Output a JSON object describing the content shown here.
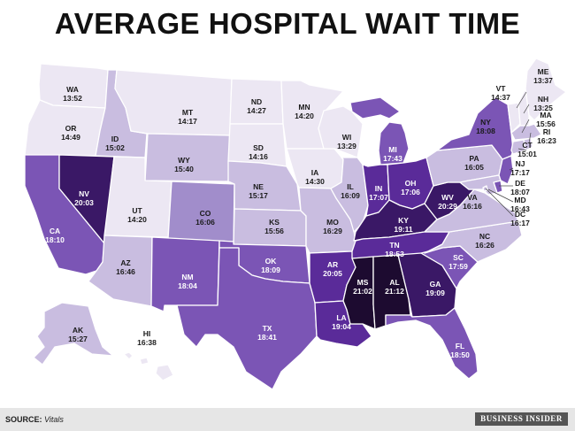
{
  "title": "AVERAGE HOSPITAL WAIT TIME",
  "source_label": "SOURCE:",
  "source_value": "Vitals",
  "brand": "BUSINESS INSIDER",
  "colors": {
    "c1": "#ece7f3",
    "c2": "#c9bde0",
    "c3": "#a18dcb",
    "c4": "#7b55b5",
    "c5": "#5a2b99",
    "c6": "#3a1866",
    "c7": "#1d0b30",
    "border": "#ffffff"
  },
  "states": {
    "WA": {
      "abbr": "WA",
      "time": "13:52"
    },
    "OR": {
      "abbr": "OR",
      "time": "14:49"
    },
    "CA": {
      "abbr": "CA",
      "time": "18:10"
    },
    "NV": {
      "abbr": "NV",
      "time": "20:03"
    },
    "ID": {
      "abbr": "ID",
      "time": "15:02"
    },
    "MT": {
      "abbr": "MT",
      "time": "14:17"
    },
    "WY": {
      "abbr": "WY",
      "time": "15:40"
    },
    "UT": {
      "abbr": "UT",
      "time": "14:20"
    },
    "AZ": {
      "abbr": "AZ",
      "time": "16:46"
    },
    "CO": {
      "abbr": "CO",
      "time": "16:06"
    },
    "NM": {
      "abbr": "NM",
      "time": "18:04"
    },
    "ND": {
      "abbr": "ND",
      "time": "14:27"
    },
    "SD": {
      "abbr": "SD",
      "time": "14:16"
    },
    "NE": {
      "abbr": "NE",
      "time": "15:17"
    },
    "KS": {
      "abbr": "KS",
      "time": "15:56"
    },
    "OK": {
      "abbr": "OK",
      "time": "18:09"
    },
    "TX": {
      "abbr": "TX",
      "time": "18:41"
    },
    "MN": {
      "abbr": "MN",
      "time": "14:20"
    },
    "IA": {
      "abbr": "IA",
      "time": "14:30"
    },
    "MO": {
      "abbr": "MO",
      "time": "16:29"
    },
    "AR": {
      "abbr": "AR",
      "time": "20:05"
    },
    "LA": {
      "abbr": "LA",
      "time": "19:04"
    },
    "WI": {
      "abbr": "WI",
      "time": "13:29"
    },
    "IL": {
      "abbr": "IL",
      "time": "16:09"
    },
    "MI": {
      "abbr": "MI",
      "time": "17:43"
    },
    "IN": {
      "abbr": "IN",
      "time": "17:07"
    },
    "OH": {
      "abbr": "OH",
      "time": "17:06"
    },
    "KY": {
      "abbr": "KY",
      "time": "19:11"
    },
    "TN": {
      "abbr": "TN",
      "time": "18:53"
    },
    "MS": {
      "abbr": "MS",
      "time": "21:02"
    },
    "AL": {
      "abbr": "AL",
      "time": "21:12"
    },
    "GA": {
      "abbr": "GA",
      "time": "19:09"
    },
    "FL": {
      "abbr": "FL",
      "time": "18:50"
    },
    "SC": {
      "abbr": "SC",
      "time": "17:59"
    },
    "NC": {
      "abbr": "NC",
      "time": "16:26"
    },
    "VA": {
      "abbr": "VA",
      "time": "16:16"
    },
    "WV": {
      "abbr": "WV",
      "time": "20:29"
    },
    "PA": {
      "abbr": "PA",
      "time": "16:05"
    },
    "NY": {
      "abbr": "NY",
      "time": "18:08"
    },
    "VT": {
      "abbr": "VT",
      "time": "14:37"
    },
    "NH": {
      "abbr": "NH",
      "time": "13:25"
    },
    "ME": {
      "abbr": "ME",
      "time": "13:37"
    },
    "MA": {
      "abbr": "MA",
      "time": "15:56"
    },
    "RI": {
      "abbr": "RI",
      "time": "16:23"
    },
    "CT": {
      "abbr": "CT",
      "time": "15:01"
    },
    "NJ": {
      "abbr": "NJ",
      "time": "17:17"
    },
    "DE": {
      "abbr": "DE",
      "time": "18:07"
    },
    "MD": {
      "abbr": "MD",
      "time": "16:43"
    },
    "DC": {
      "abbr": "DC",
      "time": "16:17"
    },
    "AK": {
      "abbr": "AK",
      "time": "15:27"
    },
    "HI": {
      "abbr": "HI",
      "time": "16:38"
    }
  }
}
